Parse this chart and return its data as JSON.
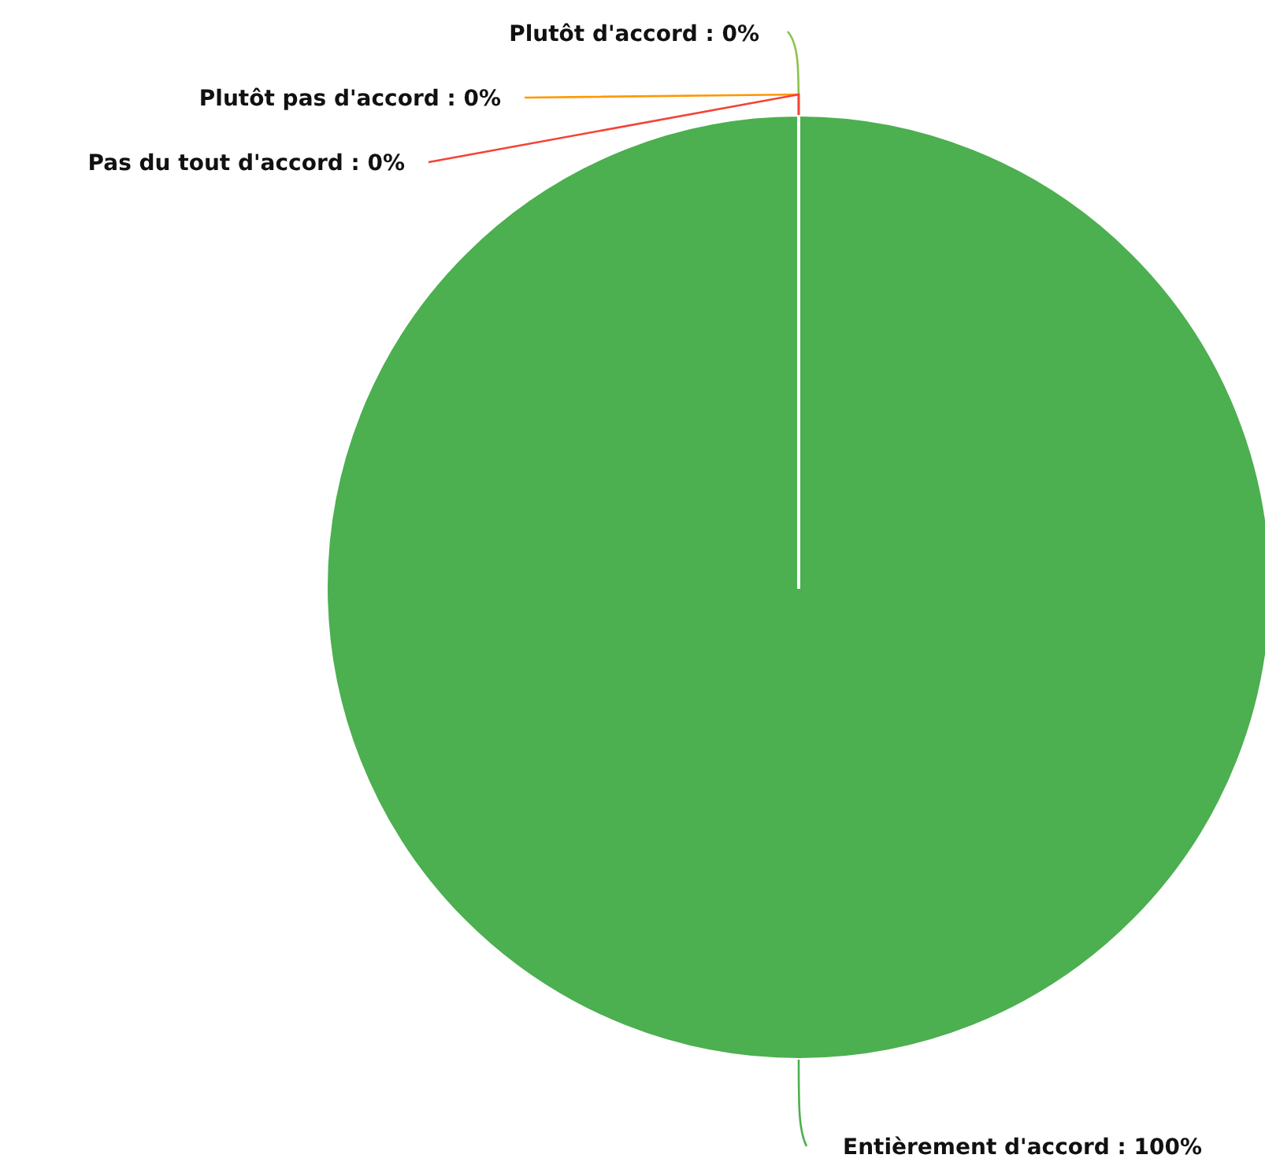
{
  "chart_data": {
    "type": "pie",
    "categories": [
      "Entièrement d'accord",
      "Plutôt d'accord",
      "Plutôt pas d'accord",
      "Pas du tout d'accord"
    ],
    "values": [
      100,
      0,
      0,
      0
    ],
    "colors": [
      "#4caf50",
      "#8bc34a",
      "#ff9800",
      "#f44336"
    ],
    "value_labels": [
      ": 100%",
      ": 0%",
      ": 0%",
      ": 0%"
    ]
  }
}
